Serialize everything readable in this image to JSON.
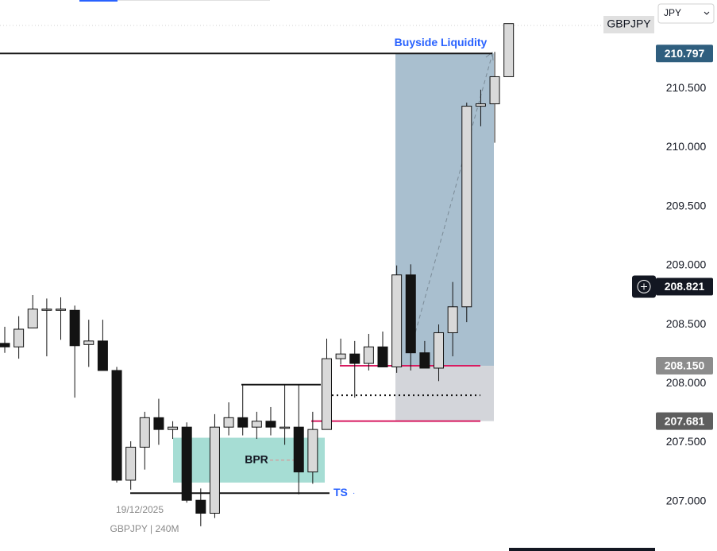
{
  "chart_data": {
    "type": "candlestick",
    "symbol": "GBPJPY",
    "currency": "JPY",
    "date_label": "19/12/2025",
    "caption": "GBPJPY | 240M",
    "open": [
      208.34,
      208.31,
      208.47,
      208.62,
      208.63,
      208.62,
      208.33,
      208.36,
      208.11,
      207.18,
      207.46,
      207.71,
      207.61,
      207.63,
      207.01,
      206.9,
      207.63,
      207.71,
      207.63,
      207.68,
      207.63,
      207.63,
      207.25,
      207.61,
      208.21,
      208.25,
      208.17,
      208.31,
      208.14,
      208.92,
      208.26,
      208.13,
      208.43,
      208.65,
      210.35,
      210.37,
      210.6
    ],
    "high": [
      208.48,
      208.57,
      208.75,
      208.72,
      208.73,
      208.66,
      208.54,
      208.54,
      208.14,
      207.51,
      207.76,
      207.87,
      207.68,
      207.67,
      207.11,
      207.74,
      207.84,
      207.99,
      207.76,
      207.8,
      207.99,
      207.99,
      207.76,
      208.38,
      208.38,
      208.36,
      208.42,
      208.44,
      209.0,
      209.01,
      208.36,
      208.5,
      208.86,
      210.38,
      210.49,
      210.81,
      211.05
    ],
    "low": [
      208.26,
      208.21,
      208.47,
      208.23,
      208.37,
      207.88,
      208.14,
      208.11,
      207.16,
      207.1,
      207.27,
      207.48,
      207.53,
      206.99,
      206.79,
      206.86,
      207.56,
      207.56,
      207.53,
      207.56,
      207.48,
      207.06,
      207.15,
      207.61,
      208.16,
      207.88,
      208.11,
      208.14,
      208.09,
      208.11,
      208.13,
      208.02,
      208.23,
      208.52,
      210.18,
      210.04,
      210.6
    ],
    "close": [
      208.31,
      208.46,
      208.63,
      208.63,
      208.63,
      208.32,
      208.36,
      208.11,
      207.18,
      207.46,
      207.71,
      207.61,
      207.63,
      207.01,
      206.9,
      207.63,
      207.71,
      207.63,
      207.68,
      207.63,
      207.63,
      207.25,
      207.61,
      208.21,
      208.25,
      208.17,
      208.31,
      208.14,
      208.92,
      208.26,
      208.13,
      208.43,
      208.65,
      210.35,
      210.37,
      210.6,
      211.05
    ],
    "up_color": "#d9d9d9",
    "down_color": "#131313",
    "ylim": [
      206.58,
      211.25
    ],
    "yticks": [
      {
        "value": 207,
        "label": "207.000"
      },
      {
        "value": 207.5,
        "label": "207.500"
      },
      {
        "value": 208,
        "label": "208.000"
      },
      {
        "value": 208.5,
        "label": "208.500"
      },
      {
        "value": 209,
        "label": "209.000"
      },
      {
        "value": 209.5,
        "label": "209.500"
      },
      {
        "value": 210,
        "label": "210.000"
      },
      {
        "value": 210.5,
        "label": "210.500"
      }
    ],
    "price_labels": [
      {
        "value": 210.797,
        "label": "210.797",
        "color": "#2f5e7e"
      },
      {
        "value": 208.821,
        "label": "208.821",
        "color": "#131722"
      },
      {
        "value": 208.15,
        "label": "208.150",
        "color": "#8c8c8c"
      },
      {
        "value": 207.681,
        "label": "207.681",
        "color": "#5e5e5e"
      }
    ],
    "zones": [
      {
        "top": 210.797,
        "bottom": 208.15,
        "color": "#a9bfcf"
      },
      {
        "top": 208.15,
        "bottom": 207.681,
        "color": "#d3d5da"
      },
      {
        "top": 207.54,
        "bottom": 207.16,
        "color": "#a6ddd4",
        "label": "BPR"
      }
    ],
    "levels": [
      {
        "value": 210.797,
        "color": "#131313",
        "label": "Buyside Liquidity"
      },
      {
        "value": 208.15,
        "color": "#d81b60"
      },
      {
        "value": 207.681,
        "color": "#d81b60"
      },
      {
        "value": 207.9,
        "color": "#131313"
      },
      {
        "value": 207.99,
        "color": "#131313"
      },
      {
        "value": 207.07,
        "color": "#131313",
        "label": "TS"
      }
    ]
  }
}
